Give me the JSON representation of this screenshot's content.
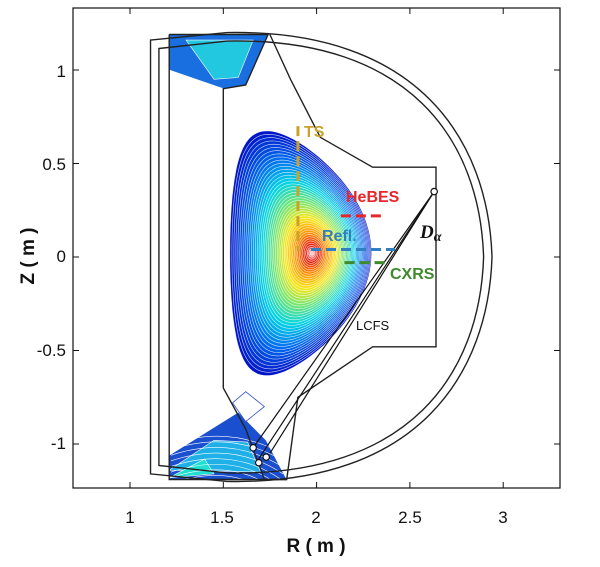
{
  "axes": {
    "xlabel": "R ( m )",
    "ylabel": "Z ( m )",
    "xlim": [
      0.75,
      3.3
    ],
    "ylim": [
      -1.33,
      1.23
    ],
    "xticks": [
      "1",
      "1.5",
      "2",
      "2.5",
      "3"
    ],
    "yticks": [
      "1",
      "0.5",
      "0",
      "-0.5",
      "-1"
    ]
  },
  "diagnostics": {
    "ts": {
      "label": "TS",
      "color": "#c9a227",
      "r": 1.9,
      "z_top": 0.7,
      "z_bottom": 0.03
    },
    "hebes": {
      "label": "HeBES",
      "color": "#e8262a",
      "r_start": 2.13,
      "r_end": 2.36,
      "z": 0.22
    },
    "refl": {
      "label": "Refl.",
      "color": "#2f7fc1",
      "r_start": 1.97,
      "r_end": 2.42,
      "z": 0.04
    },
    "cxrs": {
      "label": "CXRS",
      "color": "#3f8a2c",
      "r_start": 2.15,
      "r_end": 2.38,
      "z": -0.03
    },
    "dalpha": {
      "label": "D",
      "subscript": "α",
      "color": "#111111"
    }
  },
  "lcfs_label": "LCFS",
  "colors": {
    "contour_core": "#ffffff",
    "contour_edge": "#0000cc",
    "vessel": "#222222"
  }
}
